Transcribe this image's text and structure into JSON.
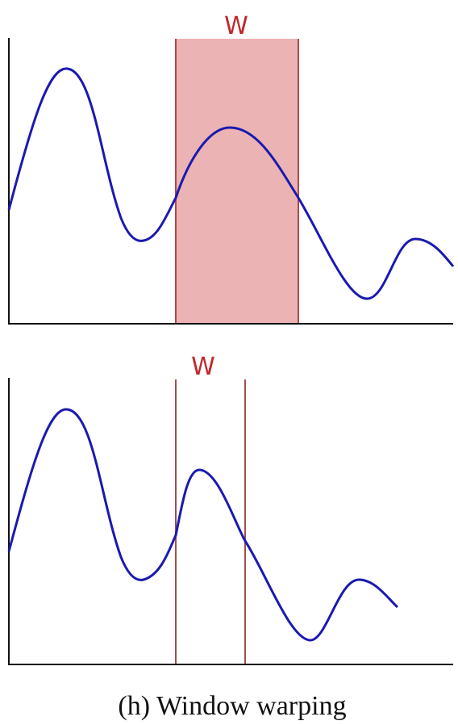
{
  "top_panel": {
    "label": "W"
  },
  "bottom_panel": {
    "label": "W"
  },
  "caption": "(h) Window warping"
}
